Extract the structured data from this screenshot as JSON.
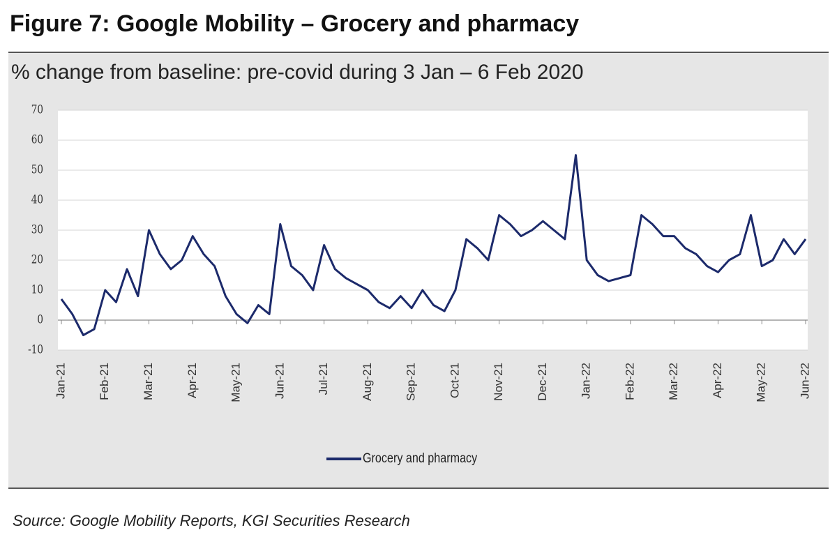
{
  "chart_data": {
    "type": "line",
    "title": "Figure 7: Google Mobility – Grocery and pharmacy",
    "subtitle": "% change from baseline: pre-covid during 3 Jan – 6 Feb 2020",
    "source": "Source: Google Mobility Reports, KGI Securities Research",
    "categories": [
      "Jan-21",
      null,
      null,
      null,
      "Feb-21",
      null,
      null,
      null,
      "Mar-21",
      null,
      null,
      null,
      "Apr-21",
      null,
      null,
      null,
      "May-21",
      null,
      null,
      null,
      "Jun-21",
      null,
      null,
      null,
      "Jul-21",
      null,
      null,
      null,
      "Aug-21",
      null,
      null,
      null,
      "Sep-21",
      null,
      null,
      null,
      "Oct-21",
      null,
      null,
      null,
      "Nov-21",
      null,
      null,
      null,
      "Dec-21",
      null,
      null,
      null,
      "Jan-22",
      null,
      null,
      null,
      "Feb-22",
      null,
      null,
      null,
      "Mar-22",
      null,
      null,
      null,
      "Apr-22",
      null,
      null,
      null,
      "May-22",
      null,
      null,
      null,
      "Jun-22"
    ],
    "series": [
      {
        "name": "Grocery and pharmacy",
        "color": "#1c2a6b",
        "values": [
          7,
          2,
          -5,
          -3,
          10,
          6,
          17,
          8,
          30,
          22,
          17,
          20,
          28,
          22,
          18,
          8,
          2,
          -1,
          5,
          2,
          32,
          18,
          15,
          10,
          25,
          17,
          14,
          12,
          10,
          6,
          4,
          8,
          4,
          10,
          5,
          3,
          10,
          27,
          24,
          20,
          35,
          32,
          28,
          30,
          33,
          30,
          27,
          55,
          20,
          15,
          13,
          14,
          15,
          35,
          32,
          28,
          28,
          24,
          22,
          18,
          16,
          20,
          22,
          35,
          18,
          20,
          27,
          22,
          27
        ]
      }
    ],
    "ylim": [
      -10,
      70
    ],
    "yticks": [
      -10,
      0,
      10,
      20,
      30,
      40,
      50,
      60,
      70
    ],
    "grid": true
  }
}
